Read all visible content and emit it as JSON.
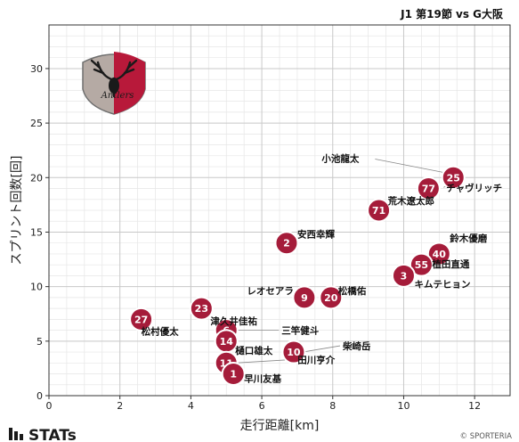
{
  "header": {
    "title": "J1 第19節 vs G大阪"
  },
  "footer": {
    "brand": "STATs",
    "copyright": "© SPORTERIA"
  },
  "colors": {
    "marker": "#a51c3a",
    "marker_edge": "#ffffff",
    "grid": "#d4d4d4",
    "axis": "#333333"
  },
  "logo": {
    "name": "Kashima Antlers emblem",
    "text": "Antlers"
  },
  "chart_data": {
    "type": "scatter",
    "title": "J1 第19節 vs G大阪",
    "xlabel": "走行距離[km]",
    "ylabel": "スプリント回数[回]",
    "xlim": [
      0,
      13
    ],
    "ylim": [
      0,
      34
    ],
    "xticks": [
      0,
      2,
      4,
      6,
      8,
      10,
      12
    ],
    "yticks": [
      0,
      5,
      10,
      15,
      20,
      25,
      30
    ],
    "grid": true,
    "points": [
      {
        "number": "25",
        "name": "チャヴリッチ",
        "x": 11.4,
        "y": 20
      },
      {
        "number": "77",
        "name": "小池龍太",
        "x": 10.7,
        "y": 19
      },
      {
        "number": "71",
        "name": "荒木遼太郎",
        "x": 9.3,
        "y": 17
      },
      {
        "number": "2",
        "name": "安西幸輝",
        "x": 6.7,
        "y": 14
      },
      {
        "number": "40",
        "name": "鈴木優磨",
        "x": 11.0,
        "y": 13
      },
      {
        "number": "55",
        "name": "植田直通",
        "x": 10.5,
        "y": 12
      },
      {
        "number": "3",
        "name": "キムテヒョン",
        "x": 10.0,
        "y": 11
      },
      {
        "number": "9",
        "name": "レオセアラ",
        "x": 7.2,
        "y": 9
      },
      {
        "number": "20",
        "name": "松橋佑",
        "x": 7.95,
        "y": 9
      },
      {
        "number": "23",
        "name": "津久井佳祐",
        "x": 4.3,
        "y": 8
      },
      {
        "number": "27",
        "name": "松村優太",
        "x": 2.6,
        "y": 7
      },
      {
        "number": "6",
        "name": "三竿健斗",
        "x": 5.0,
        "y": 6
      },
      {
        "number": "14",
        "name": "樋口雄太",
        "x": 5.0,
        "y": 5
      },
      {
        "number": "10",
        "name": "柴崎岳",
        "x": 6.9,
        "y": 4
      },
      {
        "number": "11",
        "name": "田川亨介",
        "x": 5.0,
        "y": 3
      },
      {
        "number": "1",
        "name": "早川友基",
        "x": 5.2,
        "y": 2
      }
    ]
  }
}
